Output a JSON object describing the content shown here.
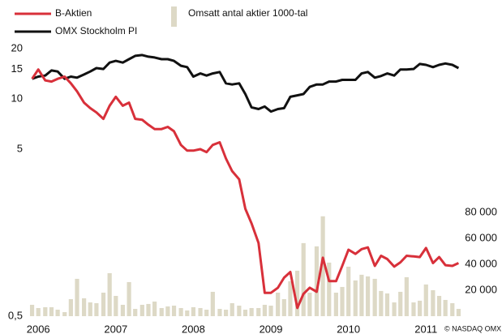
{
  "chart_data": {
    "type": "line",
    "x": [
      2005.92,
      2006.0,
      2006.09,
      2006.17,
      2006.25,
      2006.34,
      2006.42,
      2006.5,
      2006.59,
      2006.67,
      2006.75,
      2006.84,
      2006.92,
      2007.0,
      2007.09,
      2007.17,
      2007.25,
      2007.34,
      2007.42,
      2007.5,
      2007.59,
      2007.67,
      2007.75,
      2007.84,
      2007.92,
      2008.0,
      2008.09,
      2008.17,
      2008.25,
      2008.34,
      2008.42,
      2008.5,
      2008.59,
      2008.67,
      2008.75,
      2008.84,
      2008.92,
      2009.0,
      2009.09,
      2009.17,
      2009.25,
      2009.34,
      2009.42,
      2009.5,
      2009.59,
      2009.67,
      2009.75,
      2009.84,
      2009.92,
      2010.0,
      2010.09,
      2010.17,
      2010.25,
      2010.34,
      2010.42,
      2010.5,
      2010.59,
      2010.67,
      2010.75,
      2010.84,
      2010.92,
      2011.0,
      2011.09,
      2011.17,
      2011.25,
      2011.34,
      2011.42
    ],
    "series": [
      {
        "name": "B-Aktien",
        "color": "#d8303a",
        "kind": "line",
        "values": [
          13.2,
          15,
          12.9,
          12.7,
          13.2,
          13.6,
          12.4,
          11.1,
          9.5,
          8.8,
          8.3,
          7.6,
          9.1,
          10.3,
          9.1,
          9.5,
          7.6,
          7.5,
          7.0,
          6.6,
          6.6,
          6.8,
          6.4,
          5.3,
          4.9,
          4.9,
          5.0,
          4.8,
          5.3,
          5.5,
          4.4,
          3.7,
          3.3,
          2.2,
          1.8,
          1.37,
          0.69,
          0.69,
          0.74,
          0.85,
          0.92,
          0.56,
          0.68,
          0.74,
          0.7,
          1.12,
          0.81,
          0.81,
          1.0,
          1.25,
          1.18,
          1.26,
          1.29,
          1.0,
          1.15,
          1.1,
          0.99,
          1.05,
          1.15,
          1.14,
          1.13,
          1.28,
          1.04,
          1.13,
          1.01,
          1.0,
          1.04
        ]
      },
      {
        "name": "OMX Stockholm PI",
        "color": "#111111",
        "kind": "line",
        "values": [
          13.2,
          13.6,
          13.8,
          14.8,
          14.6,
          13.2,
          13.6,
          13.4,
          14.0,
          14.6,
          15.3,
          15.1,
          16.5,
          16.9,
          16.5,
          17.3,
          18.1,
          18.3,
          17.9,
          17.7,
          17.3,
          17.3,
          16.9,
          15.8,
          15.5,
          13.6,
          14.2,
          13.8,
          14.2,
          14.5,
          12.4,
          12.2,
          12.4,
          10.7,
          8.9,
          8.7,
          9.0,
          8.4,
          8.7,
          8.8,
          10.3,
          10.5,
          10.7,
          11.8,
          12.2,
          12.2,
          12.7,
          12.7,
          13.0,
          13.0,
          13.0,
          14.2,
          14.5,
          13.4,
          13.7,
          14.2,
          13.8,
          15.0,
          15.0,
          15.1,
          16.2,
          16.0,
          15.5,
          16.0,
          16.3,
          16.0,
          15.3
        ]
      },
      {
        "name": "Omsatt antal aktier 1000-tal",
        "color": "#ddd9c6",
        "kind": "bar",
        "axis": "y2",
        "values": [
          8750,
          6250,
          6900,
          6900,
          5000,
          3100,
          13100,
          28750,
          13750,
          10600,
          10000,
          18100,
          33100,
          15600,
          8750,
          26250,
          5600,
          8750,
          9400,
          11250,
          6250,
          7500,
          8100,
          6250,
          4400,
          6900,
          6250,
          5000,
          18750,
          5600,
          5000,
          10000,
          8100,
          5000,
          6250,
          6250,
          8750,
          8100,
          18100,
          13100,
          26900,
          35000,
          56250,
          18100,
          53750,
          76900,
          41250,
          18100,
          22500,
          38100,
          27500,
          31900,
          30600,
          28750,
          19400,
          17500,
          10600,
          18750,
          30000,
          10600,
          11900,
          24400,
          20000,
          15600,
          12500,
          10000,
          5600
        ]
      }
    ],
    "xlim": [
      2005.82,
      2011.52
    ],
    "xticks": [
      2006,
      2007,
      2008,
      2009,
      2010,
      2011
    ],
    "ylim": [
      0.5,
      20
    ],
    "yscale": "log",
    "yticks": [
      {
        "value": 0.5,
        "label": "0,5"
      },
      5,
      10,
      15,
      20
    ],
    "y2lim": [
      0,
      206000
    ],
    "y2ticks": [
      {
        "value": 20000,
        "label": "20 000"
      },
      {
        "value": 40000,
        "label": "40 000"
      },
      {
        "value": 60000,
        "label": "60 000"
      },
      {
        "value": 80000,
        "label": "80 000"
      }
    ],
    "annotation": "© NASDAQ OMX"
  }
}
